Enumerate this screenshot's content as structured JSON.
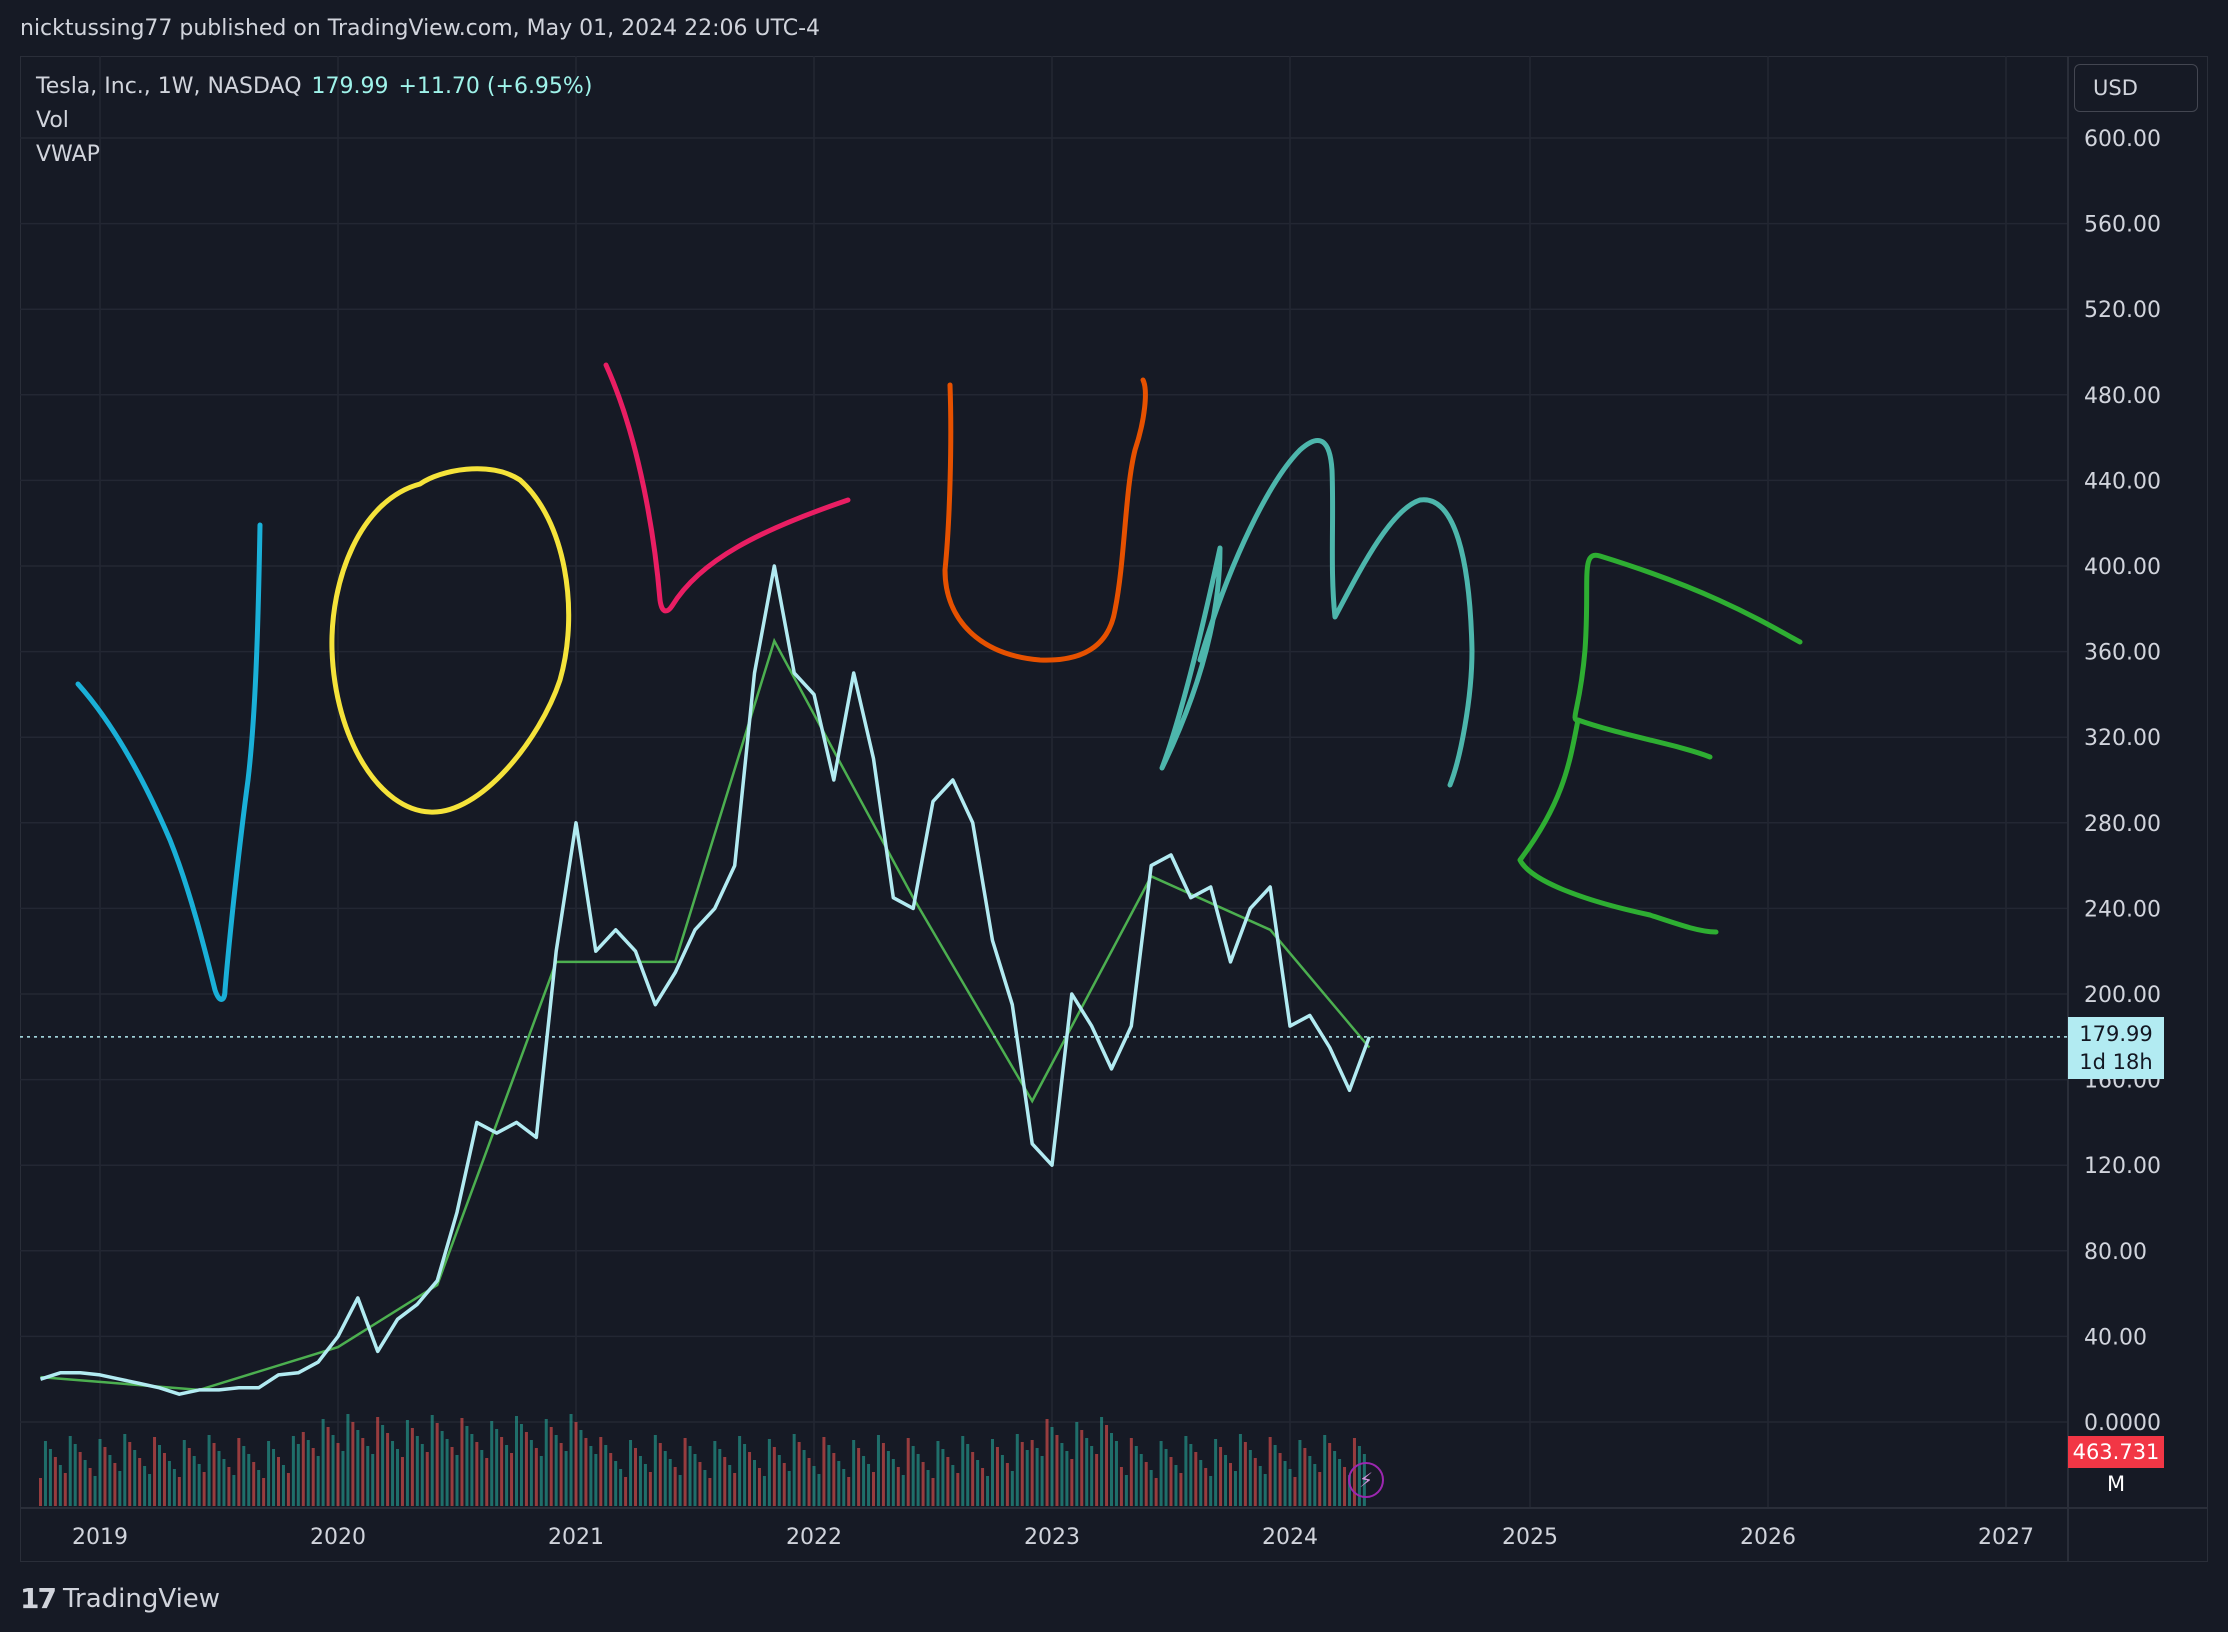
{
  "header": {
    "publisher_line": "nicktussing77 published on TradingView.com, May 01, 2024 22:06 UTC-4"
  },
  "legend": {
    "symbol": "Tesla, Inc., 1W, NASDAQ",
    "price": "179.99",
    "change": "+11.70 (+6.95%)",
    "indicator_1": "Vol",
    "indicator_2": "VWAP"
  },
  "price_axis": {
    "currency": "USD",
    "labels": [
      "600.00",
      "560.00",
      "520.00",
      "480.00",
      "440.00",
      "400.00",
      "360.00",
      "320.00",
      "280.00",
      "240.00",
      "200.00",
      "160.00",
      "120.00",
      "80.00",
      "40.00",
      "0.0000"
    ],
    "last_price_tag": "179.99",
    "countdown": "1d 18h",
    "volume_tag": "463.731 M"
  },
  "time_axis": {
    "labels": [
      "2019",
      "2020",
      "2021",
      "2022",
      "2023",
      "2024",
      "2025",
      "2026",
      "2027"
    ]
  },
  "footer": {
    "brand": "TradingView"
  },
  "colors": {
    "background": "#161a25",
    "price_line": "#b2ebf2",
    "vwap_line": "#4caf50",
    "volume_up": "#26a69a",
    "volume_down": "#ef5350",
    "last_price_tag": "#b2ebf2",
    "volume_tag": "#f23645"
  },
  "icons": {
    "flash": "lightning-icon",
    "logo": "tradingview-logo-icon"
  },
  "chart_data": {
    "type": "line",
    "title": "",
    "xlabel": "",
    "ylabel": "",
    "ylim": [
      0,
      640
    ],
    "grid": true,
    "x_axis_range": [
      "2018-09",
      "2027-06"
    ],
    "series": [
      {
        "name": "Tesla, Inc., 1W, NASDAQ",
        "x": [
          "2018-10",
          "2018-11",
          "2018-12",
          "2019-01",
          "2019-02",
          "2019-03",
          "2019-04",
          "2019-05",
          "2019-06",
          "2019-07",
          "2019-08",
          "2019-09",
          "2019-10",
          "2019-11",
          "2019-12",
          "2020-01",
          "2020-02",
          "2020-03",
          "2020-04",
          "2020-05",
          "2020-06",
          "2020-07",
          "2020-08",
          "2020-09",
          "2020-10",
          "2020-11",
          "2020-12",
          "2021-01",
          "2021-02",
          "2021-03",
          "2021-04",
          "2021-05",
          "2021-06",
          "2021-07",
          "2021-08",
          "2021-09",
          "2021-10",
          "2021-11",
          "2021-12",
          "2022-01",
          "2022-02",
          "2022-03",
          "2022-04",
          "2022-05",
          "2022-06",
          "2022-07",
          "2022-08",
          "2022-09",
          "2022-10",
          "2022-11",
          "2022-12",
          "2023-01",
          "2023-02",
          "2023-03",
          "2023-04",
          "2023-05",
          "2023-06",
          "2023-07",
          "2023-08",
          "2023-09",
          "2023-10",
          "2023-11",
          "2023-12",
          "2024-01",
          "2024-02",
          "2024-03",
          "2024-04",
          "2024-05"
        ],
        "values": [
          20,
          23,
          23,
          22,
          20,
          18,
          16,
          13,
          15,
          15,
          16,
          16,
          22,
          23,
          28,
          40,
          58,
          33,
          48,
          55,
          66,
          98,
          140,
          135,
          140,
          133,
          220,
          280,
          220,
          230,
          220,
          195,
          210,
          230,
          240,
          260,
          350,
          400,
          350,
          340,
          300,
          350,
          310,
          245,
          240,
          290,
          300,
          280,
          225,
          195,
          130,
          120,
          200,
          185,
          165,
          185,
          260,
          265,
          245,
          250,
          215,
          240,
          250,
          185,
          190,
          175,
          155,
          180
        ]
      },
      {
        "name": "VWAP",
        "x": [
          "2018-10",
          "2019-06",
          "2020-01",
          "2020-06",
          "2020-12",
          "2021-06",
          "2021-11",
          "2022-06",
          "2022-12",
          "2023-06",
          "2023-12",
          "2024-05"
        ],
        "values": [
          21,
          15,
          35,
          64,
          215,
          215,
          365,
          245,
          150,
          255,
          230,
          175
        ]
      }
    ],
    "volume": {
      "name": "Vol",
      "last_value": "463.731 M"
    },
    "last_price": 179.99
  }
}
